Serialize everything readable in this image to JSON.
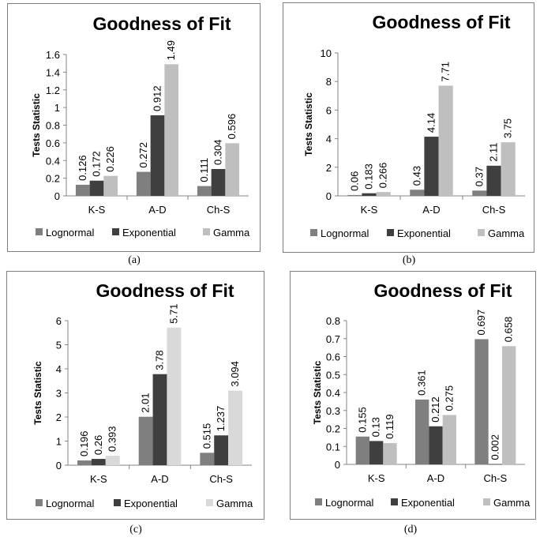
{
  "chart_data": [
    {
      "type": "bar",
      "caption": "(a)",
      "title": "Goodness of Fit",
      "ylabel": "Tests Statistic",
      "categories": [
        "K-S",
        "A-D",
        "Ch-S"
      ],
      "series": [
        {
          "name": "Lognormal",
          "values": [
            0.126,
            0.272,
            0.111
          ],
          "labels": [
            "0.126",
            "0.272",
            "0.111"
          ]
        },
        {
          "name": "Exponential",
          "values": [
            0.172,
            0.912,
            0.304
          ],
          "labels": [
            "0.172",
            "0.912",
            "0.304"
          ]
        },
        {
          "name": "Gamma",
          "values": [
            0.226,
            1.49,
            0.596
          ],
          "labels": [
            "0.226",
            "1.49",
            "0.596"
          ]
        }
      ],
      "ylim": [
        0,
        1.6
      ],
      "yticks": [
        "0",
        "0.2",
        "0.4",
        "0.6",
        "0.8",
        "1",
        "1.2",
        "1.4",
        "1.6"
      ],
      "colors": [
        "#7f7f7f",
        "#3f3f3f",
        "#bfbfbf"
      ],
      "legend": "bottom",
      "grid": false
    },
    {
      "type": "bar",
      "caption": "(b)",
      "title": "Goodness of Fit",
      "ylabel": "Tests Statistic",
      "categories": [
        "K-S",
        "A-D",
        "Ch-S"
      ],
      "series": [
        {
          "name": "Lognormal",
          "values": [
            0.06,
            0.43,
            0.37
          ],
          "labels": [
            "0.06",
            "0.43",
            "0.37"
          ]
        },
        {
          "name": "Exponential",
          "values": [
            0.183,
            4.14,
            2.11
          ],
          "labels": [
            "0.183",
            "4.14",
            "2.11"
          ]
        },
        {
          "name": "Gamma",
          "values": [
            0.266,
            7.71,
            3.75
          ],
          "labels": [
            "0.266",
            "7.71",
            "3.75"
          ]
        }
      ],
      "ylim": [
        0,
        10
      ],
      "yticks": [
        "0",
        "2",
        "4",
        "6",
        "8",
        "10"
      ],
      "colors": [
        "#7f7f7f",
        "#3f3f3f",
        "#bfbfbf"
      ],
      "legend": "bottom",
      "grid": false
    },
    {
      "type": "bar",
      "caption": "(c)",
      "title": "Goodness of Fit",
      "ylabel": "Tests Statistic",
      "categories": [
        "K-S",
        "A-D",
        "Ch-S"
      ],
      "series": [
        {
          "name": "Lognormal",
          "values": [
            0.196,
            2.01,
            0.515
          ],
          "labels": [
            "0.196",
            "2.01",
            "0.515"
          ]
        },
        {
          "name": "Exponential",
          "values": [
            0.26,
            3.78,
            1.237
          ],
          "labels": [
            "0.26",
            "3.78",
            "1.237"
          ]
        },
        {
          "name": "Gamma",
          "values": [
            0.393,
            5.71,
            3.094
          ],
          "labels": [
            "0.393",
            "5.71",
            "3.094"
          ]
        }
      ],
      "ylim": [
        0,
        6
      ],
      "yticks": [
        "0",
        "1",
        "2",
        "3",
        "4",
        "5",
        "6"
      ],
      "colors": [
        "#7f7f7f",
        "#3f3f3f",
        "#d9d9d9"
      ],
      "legend": "bottom",
      "grid": false
    },
    {
      "type": "bar",
      "caption": "(d)",
      "title": "Goodness of Fit",
      "ylabel": "Tests Statistic",
      "categories": [
        "K-S",
        "A-D",
        "Ch-S"
      ],
      "series": [
        {
          "name": "Lognormal",
          "values": [
            0.155,
            0.361,
            0.697
          ],
          "labels": [
            "0.155",
            "0.361",
            "0.697"
          ]
        },
        {
          "name": "Exponential",
          "values": [
            0.13,
            0.212,
            0.002
          ],
          "labels": [
            "0.13",
            "0.212",
            "0.002"
          ]
        },
        {
          "name": "Gamma",
          "values": [
            0.119,
            0.275,
            0.658
          ],
          "labels": [
            "0.119",
            "0.275",
            "0.658"
          ]
        }
      ],
      "ylim": [
        0,
        0.8
      ],
      "yticks": [
        "0",
        "0.1",
        "0.2",
        "0.3",
        "0.4",
        "0.5",
        "0.6",
        "0.7",
        "0.8"
      ],
      "colors": [
        "#7f7f7f",
        "#3f3f3f",
        "#bfbfbf"
      ],
      "legend": "bottom",
      "grid": false
    }
  ]
}
